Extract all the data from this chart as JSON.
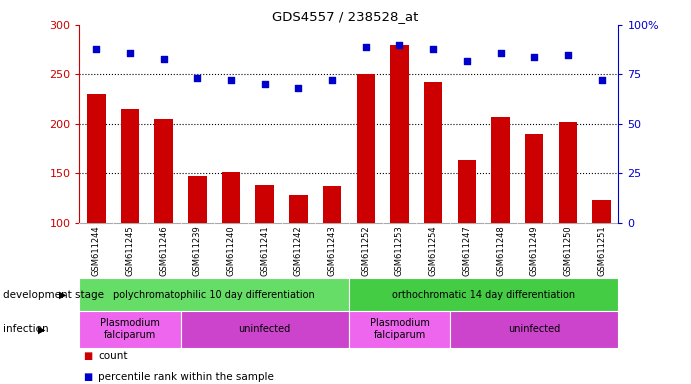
{
  "title": "GDS4557 / 238528_at",
  "samples": [
    "GSM611244",
    "GSM611245",
    "GSM611246",
    "GSM611239",
    "GSM611240",
    "GSM611241",
    "GSM611242",
    "GSM611243",
    "GSM611252",
    "GSM611253",
    "GSM611254",
    "GSM611247",
    "GSM611248",
    "GSM611249",
    "GSM611250",
    "GSM611251"
  ],
  "counts": [
    230,
    215,
    205,
    147,
    151,
    138,
    128,
    137,
    250,
    280,
    242,
    163,
    207,
    190,
    202,
    123
  ],
  "percentiles": [
    88,
    86,
    83,
    73,
    72,
    70,
    68,
    72,
    89,
    90,
    88,
    82,
    86,
    84,
    85,
    72
  ],
  "bar_color": "#cc0000",
  "dot_color": "#0000cc",
  "ylim_left": [
    100,
    300
  ],
  "ylim_right": [
    0,
    100
  ],
  "yticks_left": [
    100,
    150,
    200,
    250,
    300
  ],
  "yticks_right": [
    0,
    25,
    50,
    75,
    100
  ],
  "ytick_labels_right": [
    "0",
    "25",
    "50",
    "75",
    "100%"
  ],
  "hlines": [
    150,
    200,
    250
  ],
  "dev_stage_groups": [
    {
      "label": "polychromatophilic 10 day differentiation",
      "start": 0,
      "end": 7,
      "color": "#66dd66"
    },
    {
      "label": "orthochromatic 14 day differentiation",
      "start": 8,
      "end": 15,
      "color": "#44cc44"
    }
  ],
  "infection_groups": [
    {
      "label": "Plasmodium\nfalciparum",
      "start": 0,
      "end": 2,
      "color": "#ee66ee"
    },
    {
      "label": "uninfected",
      "start": 3,
      "end": 7,
      "color": "#cc44cc"
    },
    {
      "label": "Plasmodium\nfalciparum",
      "start": 8,
      "end": 10,
      "color": "#ee66ee"
    },
    {
      "label": "uninfected",
      "start": 11,
      "end": 15,
      "color": "#cc44cc"
    }
  ],
  "annot_dev_stage": "development stage",
  "annot_infection": "infection",
  "legend_count": "count",
  "legend_pct": "percentile rank within the sample",
  "left_axis_color": "#cc0000",
  "right_axis_color": "#0000cc",
  "tick_bg_color": "#d8d8d8"
}
